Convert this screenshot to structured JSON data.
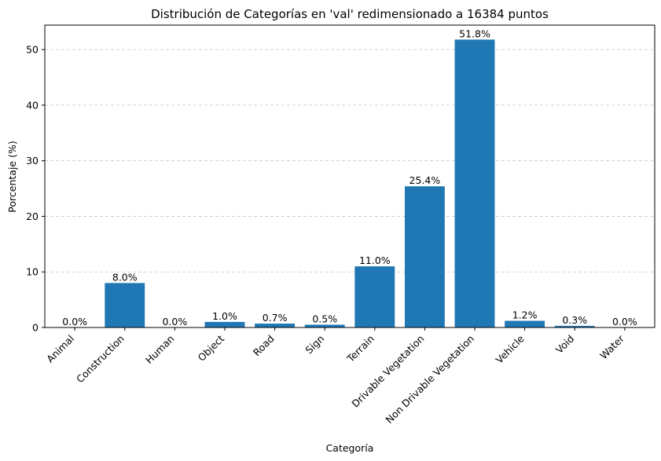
{
  "chart_data": {
    "type": "bar",
    "title": "Distribución de Categorías en 'val' redimensionado a 16384 puntos",
    "xlabel": "Categoría",
    "ylabel": "Porcentaje (%)",
    "categories": [
      "Animal",
      "Construction",
      "Human",
      "Object",
      "Road",
      "Sign",
      "Terrain",
      "Drivable Vegetation",
      "Non Drivable Vegetation",
      "Vehicle",
      "Void",
      "Water"
    ],
    "values": [
      0.0,
      8.0,
      0.0,
      1.0,
      0.7,
      0.5,
      11.0,
      25.4,
      51.8,
      1.2,
      0.3,
      0.0
    ],
    "data_labels": [
      "0.0%",
      "8.0%",
      "0.0%",
      "1.0%",
      "0.7%",
      "0.5%",
      "11.0%",
      "25.4%",
      "51.8%",
      "1.2%",
      "0.3%",
      "0.0%"
    ],
    "yticks": [
      0,
      10,
      20,
      30,
      40,
      50
    ],
    "ylim": [
      0,
      54.4
    ],
    "grid": "y-dashed",
    "bar_color": "#1f77b4",
    "grid_color": "#c8c8c8"
  }
}
